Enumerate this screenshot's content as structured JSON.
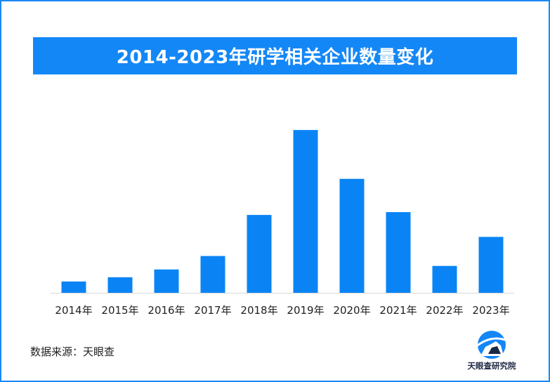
{
  "colors": {
    "accent": "#1487f7",
    "bar": "#0a84f5",
    "frame": "#1a88f5"
  },
  "chart_data": {
    "type": "bar",
    "title": "2014-2023年研学相关企业数量变化",
    "categories": [
      "2014年",
      "2015年",
      "2016年",
      "2017年",
      "2018年",
      "2019年",
      "2020年",
      "2021年",
      "2022年",
      "2023年"
    ],
    "values": [
      16,
      22,
      33,
      52,
      110,
      230,
      161,
      114,
      38,
      79
    ],
    "ylim": [
      0,
      245
    ],
    "grid": false,
    "xlabel": "",
    "ylabel": ""
  },
  "footer": {
    "source": "数据来源：天眼查",
    "logo_text": "天眼查研究院",
    "logo_icon": "tianyancha-logo-icon"
  }
}
